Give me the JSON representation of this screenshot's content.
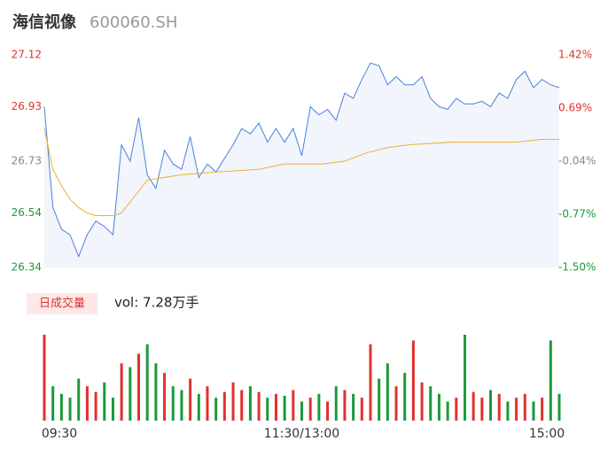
{
  "chart_data": {
    "type": "line",
    "title": "海信视像",
    "subtitle": "600060.SH",
    "xlim": [
      0,
      240
    ],
    "xticks": [
      {
        "value": 0,
        "label": "09:30"
      },
      {
        "value": 120,
        "label": "11:30/13:00"
      },
      {
        "value": 240,
        "label": "15:00"
      }
    ],
    "ylim": [
      26.34,
      27.12
    ],
    "yticks": [
      26.34,
      26.54,
      26.73,
      26.93,
      27.12
    ],
    "y2lim": [
      -1.5,
      1.42
    ],
    "y2ticks": [
      {
        "value": -1.5,
        "label": "-1.50%"
      },
      {
        "value": -0.77,
        "label": "-0.77%"
      },
      {
        "value": -0.04,
        "label": "-0.04%"
      },
      {
        "value": 0.69,
        "label": "0.69%"
      },
      {
        "value": 1.42,
        "label": "1.42%"
      }
    ],
    "series": [
      {
        "name": "price",
        "color": "#4a7fe0",
        "x": [
          0,
          4,
          8,
          12,
          16,
          20,
          24,
          28,
          32,
          36,
          40,
          44,
          48,
          52,
          56,
          60,
          64,
          68,
          72,
          76,
          80,
          84,
          88,
          92,
          96,
          100,
          104,
          108,
          112,
          116,
          120,
          124,
          128,
          132,
          136,
          140,
          144,
          148,
          152,
          156,
          160,
          164,
          168,
          172,
          176,
          180,
          184,
          188,
          192,
          196,
          200,
          204,
          208,
          212,
          216,
          220,
          224,
          228,
          232,
          236,
          240
        ],
        "values": [
          26.93,
          26.56,
          26.48,
          26.46,
          26.38,
          26.46,
          26.51,
          26.49,
          26.46,
          26.79,
          26.73,
          26.89,
          26.68,
          26.63,
          26.77,
          26.72,
          26.7,
          26.82,
          26.67,
          26.72,
          26.69,
          26.74,
          26.79,
          26.85,
          26.83,
          26.87,
          26.8,
          26.85,
          26.8,
          26.85,
          26.75,
          26.93,
          26.9,
          26.92,
          26.88,
          26.98,
          26.96,
          27.03,
          27.09,
          27.08,
          27.01,
          27.04,
          27.01,
          27.01,
          27.04,
          26.96,
          26.93,
          26.92,
          26.96,
          26.94,
          26.94,
          26.95,
          26.93,
          26.98,
          26.96,
          27.03,
          27.06,
          27.0,
          27.03,
          27.01,
          27.0
        ]
      },
      {
        "name": "average",
        "color": "#f0b030",
        "x": [
          0,
          4,
          8,
          12,
          16,
          20,
          24,
          32,
          36,
          40,
          44,
          48,
          64,
          80,
          100,
          112,
          130,
          140,
          150,
          160,
          170,
          190,
          220,
          232,
          240
        ],
        "values": [
          26.85,
          26.7,
          26.64,
          26.59,
          26.56,
          26.54,
          26.53,
          26.53,
          26.54,
          26.58,
          26.62,
          26.66,
          26.68,
          26.69,
          26.7,
          26.72,
          26.72,
          26.73,
          26.76,
          26.78,
          26.79,
          26.8,
          26.8,
          26.81,
          26.81
        ]
      }
    ],
    "volume": {
      "button": "日成交量",
      "label": "vol: 7.28万手",
      "values": [
        45,
        18,
        14,
        12,
        22,
        18,
        15,
        20,
        12,
        30,
        28,
        35,
        40,
        30,
        25,
        18,
        16,
        22,
        14,
        18,
        12,
        15,
        20,
        16,
        18,
        15,
        12,
        14,
        13,
        16,
        10,
        12,
        14,
        10,
        18,
        16,
        14,
        12,
        40,
        22,
        30,
        18,
        25,
        42,
        20,
        18,
        14,
        10,
        12,
        45,
        15,
        12,
        16,
        14,
        10,
        12,
        14,
        10,
        12,
        42,
        14
      ]
    }
  }
}
